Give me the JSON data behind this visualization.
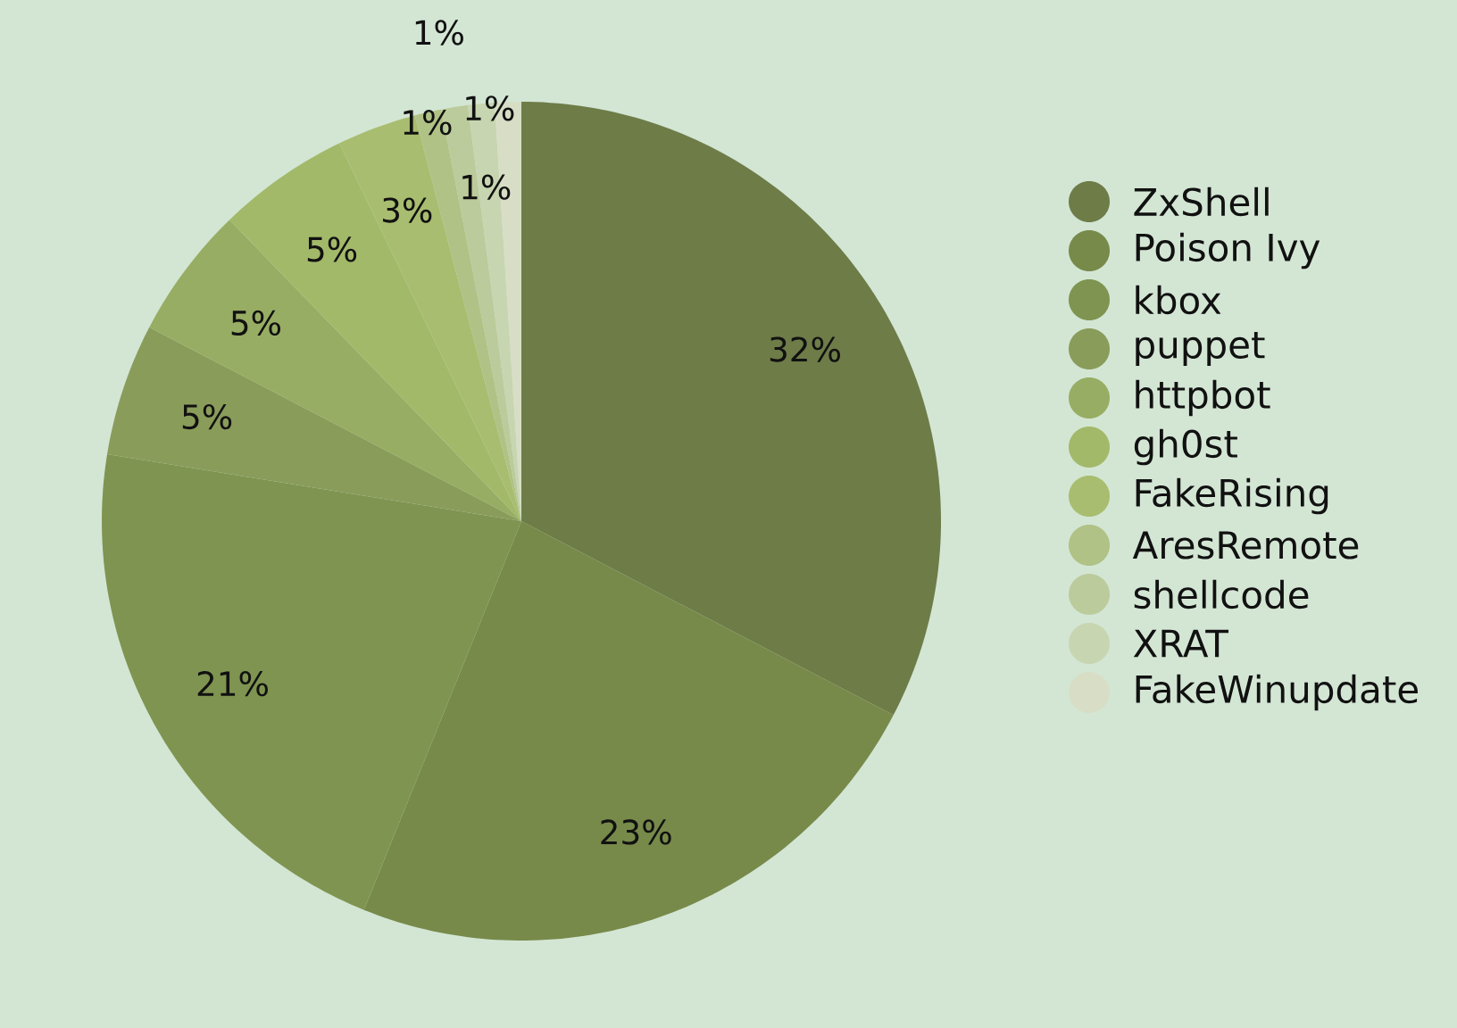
{
  "chart_data": {
    "type": "pie",
    "categories": [
      "ZxShell",
      "Poison Ivy",
      "kbox",
      "puppet",
      "httpbot",
      "gh0st",
      "FakeRising",
      "AresRemote",
      "shellcode",
      "XRAT",
      "FakeWinupdate"
    ],
    "values": [
      32,
      23,
      21,
      5,
      5,
      5,
      3,
      1,
      1,
      1,
      1
    ],
    "value_labels": [
      "32%",
      "23%",
      "21%",
      "5%",
      "5%",
      "5%",
      "3%",
      "1%",
      "1%",
      "1%",
      "1%"
    ],
    "colors": [
      "#6e7c48",
      "#778a4a",
      "#7f9450",
      "#8a9c5a",
      "#97ad63",
      "#a3b96a",
      "#a8bd6f",
      "#b0c285",
      "#bccb9b",
      "#c8d5b1",
      "#d8dec5"
    ],
    "legend": "right"
  }
}
